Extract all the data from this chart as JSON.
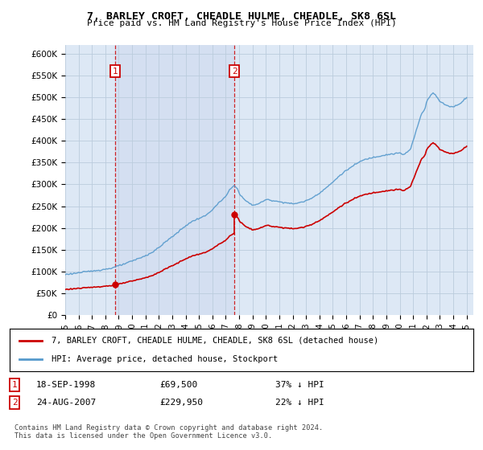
{
  "title": "7, BARLEY CROFT, CHEADLE HULME, CHEADLE, SK8 6SL",
  "subtitle": "Price paid vs. HM Land Registry's House Price Index (HPI)",
  "legend_line1": "7, BARLEY CROFT, CHEADLE HULME, CHEADLE, SK8 6SL (detached house)",
  "legend_line2": "HPI: Average price, detached house, Stockport",
  "footer": "Contains HM Land Registry data © Crown copyright and database right 2024.\nThis data is licensed under the Open Government Licence v3.0.",
  "sale1_label": "1",
  "sale1_date": "18-SEP-1998",
  "sale1_price": "£69,500",
  "sale1_hpi": "37% ↓ HPI",
  "sale1_x": 1998.72,
  "sale1_y": 69500,
  "sale2_label": "2",
  "sale2_date": "24-AUG-2007",
  "sale2_price": "£229,950",
  "sale2_hpi": "22% ↓ HPI",
  "sale2_x": 2007.65,
  "sale2_y": 229950,
  "hpi_color": "#5599cc",
  "sale_color": "#cc0000",
  "background_color": "#dde8f5",
  "highlight_color": "#ccddf0",
  "grid_color": "#bbccdd",
  "xlim_min": 1995.0,
  "xlim_max": 2025.5,
  "ylim_min": 0,
  "ylim_max": 620000,
  "yticks": [
    0,
    50000,
    100000,
    150000,
    200000,
    250000,
    300000,
    350000,
    400000,
    450000,
    500000,
    550000,
    600000
  ],
  "ytick_labels": [
    "£0",
    "£50K",
    "£100K",
    "£150K",
    "£200K",
    "£250K",
    "£300K",
    "£350K",
    "£400K",
    "£450K",
    "£500K",
    "£550K",
    "£600K"
  ],
  "xticks": [
    1995,
    1996,
    1997,
    1998,
    1999,
    2000,
    2001,
    2002,
    2003,
    2004,
    2005,
    2006,
    2007,
    2008,
    2009,
    2010,
    2011,
    2012,
    2013,
    2014,
    2015,
    2016,
    2017,
    2018,
    2019,
    2020,
    2021,
    2022,
    2023,
    2024,
    2025
  ]
}
